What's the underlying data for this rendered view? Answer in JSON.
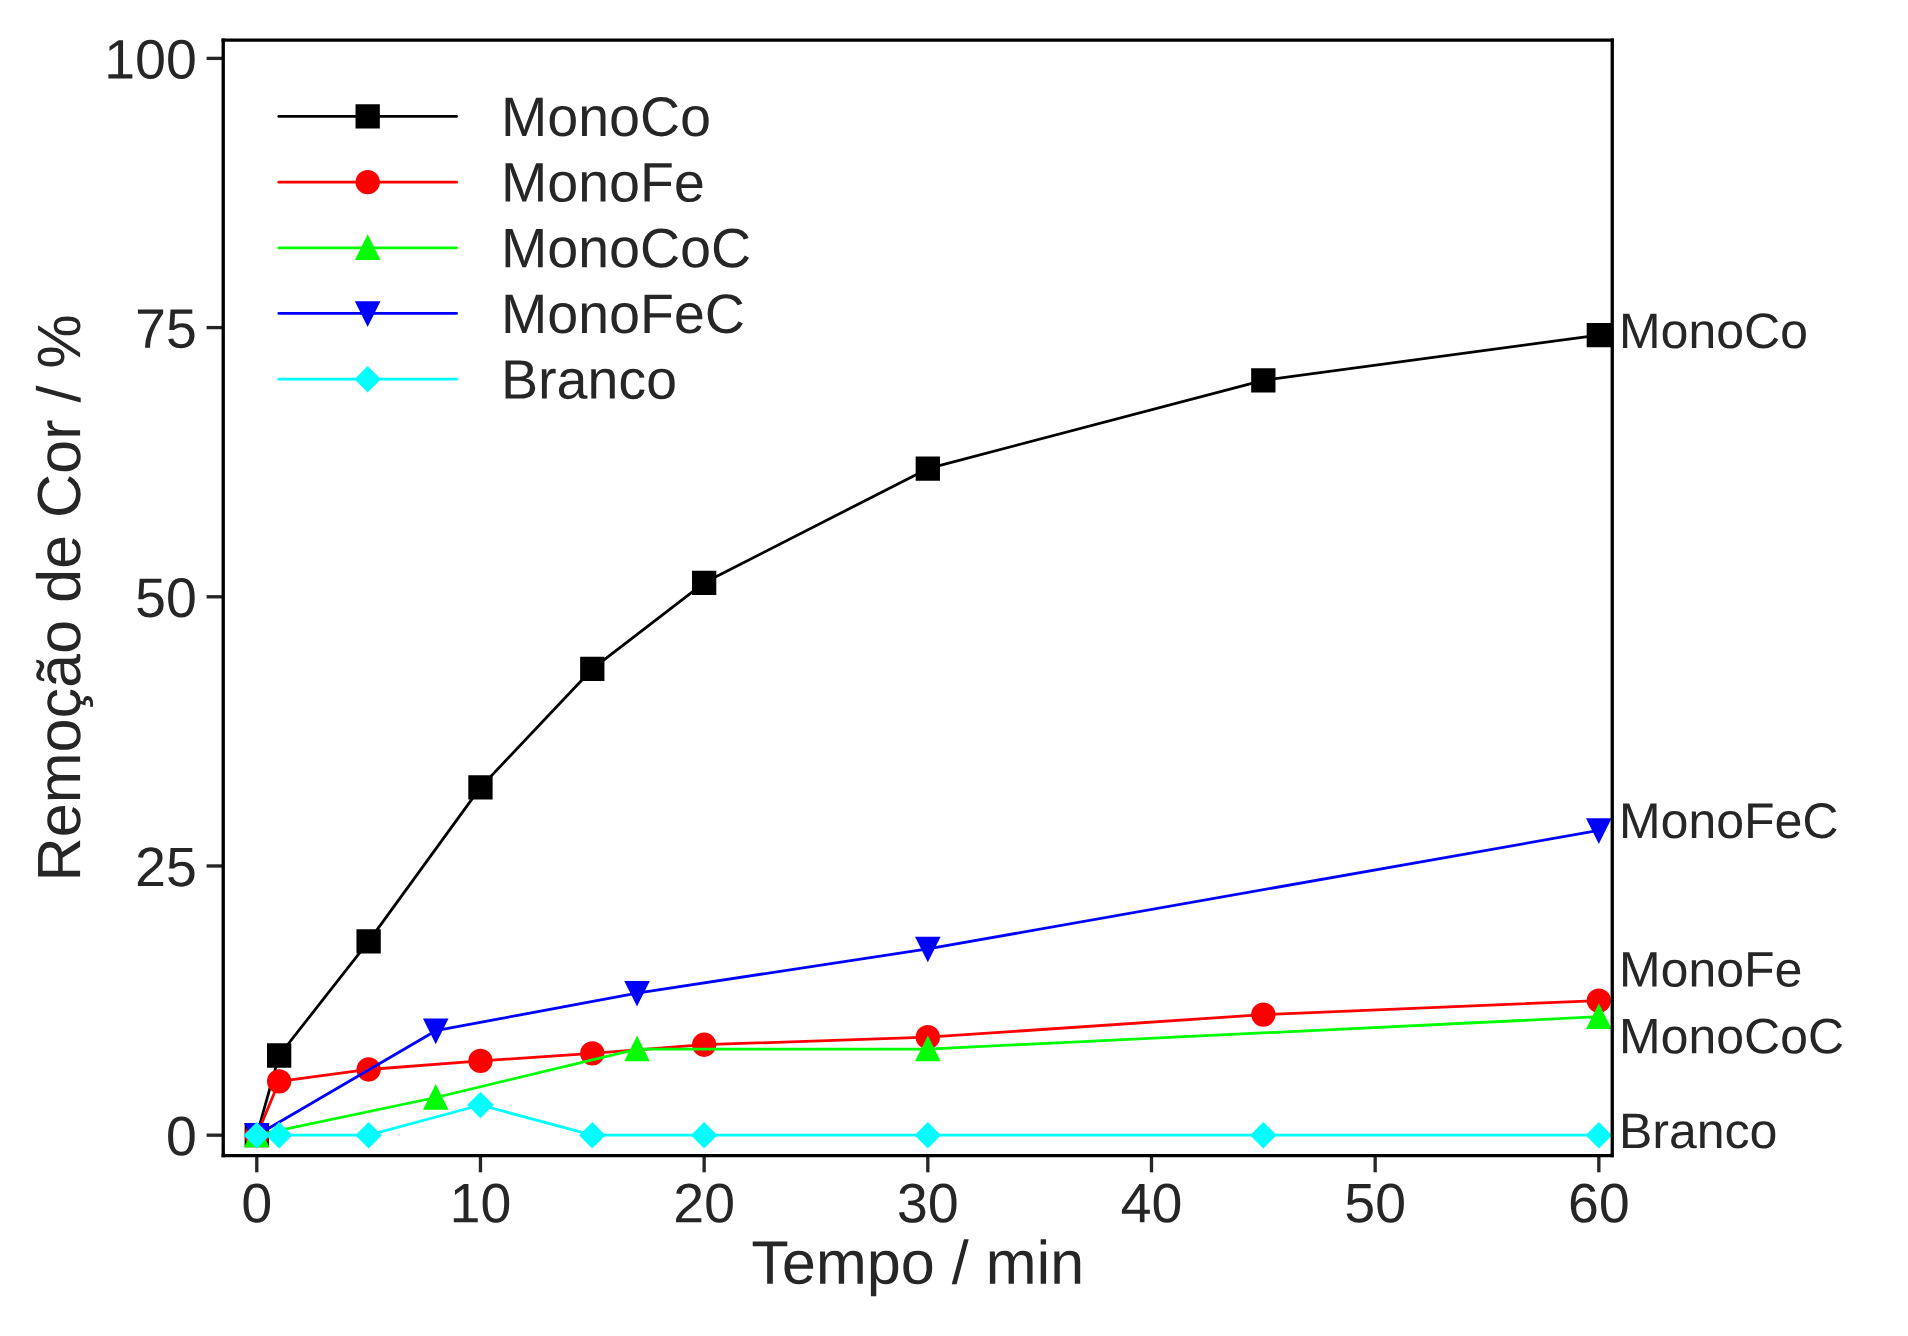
{
  "chart_data": {
    "type": "line",
    "xlabel": "Tempo / min",
    "ylabel": "Remoção de Cor / %",
    "xlim": [
      -1.5,
      60.6
    ],
    "ylim": [
      -1.9,
      101.7
    ],
    "xticks": [
      0,
      10,
      20,
      30,
      40,
      50,
      60
    ],
    "yticks": [
      0,
      25,
      50,
      75,
      100
    ],
    "grid": false,
    "legend": "top left",
    "series": [
      {
        "name": "MonoCo",
        "color": "#000000",
        "marker": "square",
        "x": [
          0,
          1,
          5,
          10,
          15,
          20,
          30,
          45,
          60
        ],
        "values": [
          0,
          7.4,
          18.0,
          32.3,
          43.3,
          51.3,
          61.9,
          70.1,
          74.3
        ]
      },
      {
        "name": "MonoFe",
        "color": "#ff0000",
        "marker": "circle",
        "x": [
          0,
          1,
          5,
          10,
          15,
          20,
          30,
          45,
          60
        ],
        "values": [
          0,
          5.0,
          6.1,
          6.9,
          7.6,
          8.4,
          9.1,
          11.2,
          12.5
        ]
      },
      {
        "name": "MonoCoC",
        "color": "#00ff00",
        "marker": "triangle",
        "x": [
          0,
          8,
          17,
          30,
          60
        ],
        "values": [
          0,
          3.5,
          8.0,
          8.0,
          11.0
        ]
      },
      {
        "name": "MonoFeC",
        "color": "#0000ff",
        "marker": "triangle_down",
        "x": [
          0,
          8,
          17,
          30,
          60
        ],
        "values": [
          0,
          9.7,
          13.2,
          17.3,
          28.3
        ]
      },
      {
        "name": "Branco",
        "color": "#00ffff",
        "marker": "diamond",
        "x": [
          0,
          1,
          5,
          10,
          15,
          20,
          30,
          45,
          60
        ],
        "values": [
          0,
          0,
          0,
          2.8,
          0,
          0,
          0,
          0,
          0
        ]
      }
    ]
  }
}
